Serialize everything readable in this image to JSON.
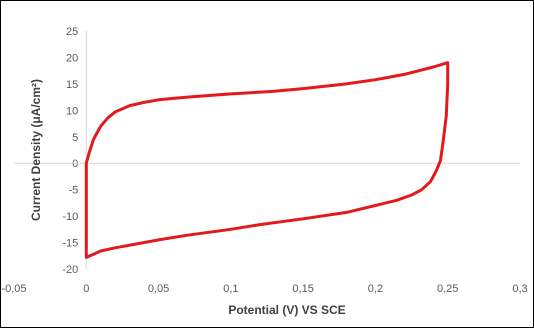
{
  "chart_data": {
    "type": "line",
    "title": "",
    "xlabel": "Potential (V) VS SCE",
    "ylabel": "Current Density (μA/cm²)",
    "xlim": [
      -0.05,
      0.3
    ],
    "ylim": [
      -20,
      25
    ],
    "x_ticks": [
      -0.05,
      0,
      0.05,
      0.1,
      0.15,
      0.2,
      0.25,
      0.3
    ],
    "x_tick_labels": [
      "-0,05",
      "0",
      "0,05",
      "0,1",
      "0,15",
      "0,2",
      "0,25",
      "0,3"
    ],
    "y_ticks": [
      25,
      20,
      15,
      10,
      5,
      0,
      -5,
      -10,
      -15,
      -20
    ],
    "y_tick_labels": [
      "25",
      "20",
      "15",
      "10",
      "5",
      "0",
      "-5",
      "-10",
      "-15",
      "-20"
    ],
    "gridlines": false,
    "legend": "none",
    "series": [
      {
        "color": "#e31a1c",
        "closed": true,
        "x": [
          0.0,
          0.0,
          0.002,
          0.005,
          0.01,
          0.015,
          0.02,
          0.03,
          0.04,
          0.05,
          0.07,
          0.1,
          0.13,
          0.15,
          0.18,
          0.2,
          0.22,
          0.24,
          0.25,
          0.25,
          0.249,
          0.247,
          0.245,
          0.242,
          0.238,
          0.232,
          0.225,
          0.215,
          0.2,
          0.18,
          0.15,
          0.12,
          0.1,
          0.07,
          0.05,
          0.03,
          0.02,
          0.01,
          0.005,
          0.0,
          0.0
        ],
        "y": [
          -5.0,
          0.0,
          2.0,
          4.5,
          7.0,
          8.6,
          9.7,
          10.9,
          11.5,
          12.0,
          12.5,
          13.1,
          13.6,
          14.1,
          15.0,
          15.8,
          16.8,
          18.2,
          19.0,
          15.0,
          9.0,
          4.5,
          0.5,
          -1.5,
          -3.5,
          -5.0,
          -6.0,
          -7.0,
          -8.0,
          -9.3,
          -10.5,
          -11.6,
          -12.5,
          -13.6,
          -14.5,
          -15.5,
          -16.0,
          -16.6,
          -17.2,
          -17.8,
          -5.0
        ]
      }
    ]
  }
}
